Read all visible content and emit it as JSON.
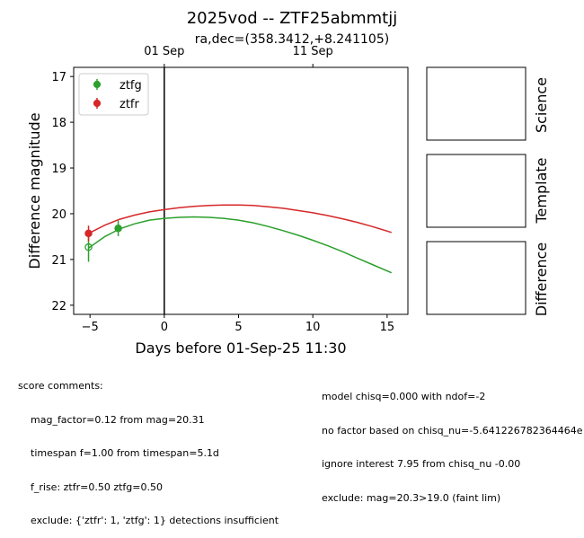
{
  "chart_data": {
    "type": "scatter",
    "title": "2025vod -- ZTF25abmmtjj",
    "subtitle": "ra,dec=(358.3412,+8.241105)",
    "xlabel": "Days before 01-Sep-25 11:30",
    "ylabel": "Difference magnitude",
    "xlim": [
      -6.1,
      16.4
    ],
    "ylim": [
      22.2,
      16.8
    ],
    "y_inverted": true,
    "x_ticks": [
      -5,
      0,
      5,
      10,
      15
    ],
    "x_tick_labels": [
      "−5",
      "0",
      "5",
      "10",
      "15"
    ],
    "y_ticks": [
      17,
      18,
      19,
      20,
      21,
      22
    ],
    "y_tick_labels": [
      "17",
      "18",
      "19",
      "20",
      "21",
      "22"
    ],
    "top_axis_ticks": [
      {
        "x": 0,
        "label": "01 Sep"
      },
      {
        "x": 10,
        "label": "11 Sep"
      }
    ],
    "vline": {
      "x": 0,
      "color": "#000000"
    },
    "legend": {
      "position": "top-left",
      "entries": [
        {
          "label": "ztfg",
          "color": "#2ca02c"
        },
        {
          "label": "ztfr",
          "color": "#d62728"
        }
      ]
    },
    "series": [
      {
        "name": "ztfg",
        "color": "#2ca02c",
        "points": [
          {
            "x": -5.1,
            "y": 20.73,
            "err": 0.32,
            "filled": false
          },
          {
            "x": -3.1,
            "y": 20.32,
            "err": 0.17,
            "filled": true
          }
        ],
        "model": [
          [
            -5.1,
            20.75
          ],
          [
            -4,
            20.5
          ],
          [
            -3,
            20.33
          ],
          [
            -2,
            20.22
          ],
          [
            -1,
            20.14
          ],
          [
            0,
            20.1
          ],
          [
            1,
            20.08
          ],
          [
            2,
            20.07
          ],
          [
            3,
            20.08
          ],
          [
            4,
            20.1
          ],
          [
            5,
            20.14
          ],
          [
            6,
            20.2
          ],
          [
            7,
            20.28
          ],
          [
            8,
            20.37
          ],
          [
            9,
            20.47
          ],
          [
            10,
            20.58
          ],
          [
            11,
            20.7
          ],
          [
            12,
            20.83
          ],
          [
            13,
            20.97
          ],
          [
            14,
            21.11
          ],
          [
            15.3,
            21.29
          ]
        ]
      },
      {
        "name": "ztfr",
        "color": "#d62728",
        "points": [
          {
            "x": -5.1,
            "y": 20.43,
            "err": 0.17,
            "filled": true
          }
        ],
        "model": [
          [
            -5.1,
            20.43
          ],
          [
            -4,
            20.25
          ],
          [
            -3,
            20.12
          ],
          [
            -2,
            20.03
          ],
          [
            -1,
            19.96
          ],
          [
            0,
            19.91
          ],
          [
            1,
            19.87
          ],
          [
            2,
            19.84
          ],
          [
            3,
            19.82
          ],
          [
            4,
            19.81
          ],
          [
            5,
            19.81
          ],
          [
            6,
            19.82
          ],
          [
            7,
            19.85
          ],
          [
            8,
            19.88
          ],
          [
            9,
            19.93
          ],
          [
            10,
            19.98
          ],
          [
            11,
            20.04
          ],
          [
            12,
            20.11
          ],
          [
            13,
            20.19
          ],
          [
            14,
            20.28
          ],
          [
            15.3,
            20.41
          ]
        ]
      }
    ]
  },
  "cutouts": [
    "Science",
    "Template",
    "Difference"
  ],
  "comments": {
    "header": "score comments:",
    "left": [
      "mag_factor=0.12 from mag=20.31",
      "timespan f=1.00 from timespan=5.1d",
      "f_rise: ztfr=0.50 ztfg=0.50",
      "exclude: {'ztfr': 1, 'ztfg': 1} detections insufficient"
    ],
    "right": [
      "model chisq=0.000 with ndof=-2",
      "no factor based on chisq_nu=-5.641226782364464e",
      "ignore interest 7.95 from chisq_nu -0.00",
      "exclude: mag=20.3>19.0 (faint lim)"
    ]
  }
}
